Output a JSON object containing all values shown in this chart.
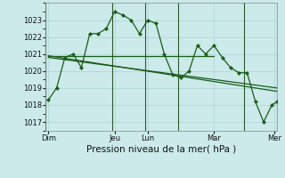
{
  "xlabel": "Pression niveau de la mer( hPa )",
  "bg_color": "#cceaea",
  "grid_color": "#b8d8d8",
  "line_color": "#1a5c1a",
  "vline_color": "#2d5a2d",
  "xlim": [
    0,
    168
  ],
  "ylim": [
    1016.5,
    1024.0
  ],
  "yticks": [
    1017,
    1018,
    1019,
    1020,
    1021,
    1022,
    1023
  ],
  "day_lines_x": [
    0,
    48,
    72,
    96,
    144,
    168
  ],
  "xtick_positions": [
    2,
    50,
    74,
    122,
    166
  ],
  "xtick_labels": [
    "Dim",
    "Jeu",
    "Lun",
    "Mar",
    "Mer"
  ],
  "series_main": {
    "x": [
      2,
      8,
      14,
      20,
      26,
      32,
      38,
      44,
      50,
      56,
      62,
      68,
      74,
      80,
      86,
      92,
      98,
      104,
      110,
      116,
      122,
      128,
      134,
      140,
      146,
      152,
      158,
      164,
      168
    ],
    "y": [
      1018.3,
      1019.0,
      1020.8,
      1021.0,
      1020.2,
      1022.2,
      1022.2,
      1022.5,
      1023.5,
      1023.3,
      1023.0,
      1022.2,
      1023.0,
      1022.8,
      1021.0,
      1019.8,
      1019.6,
      1020.0,
      1021.5,
      1021.0,
      1021.5,
      1020.8,
      1020.2,
      1019.9,
      1019.9,
      1018.2,
      1017.0,
      1018.0,
      1018.2
    ]
  },
  "series_flat": {
    "x": [
      2,
      96,
      122
    ],
    "y": [
      1020.9,
      1020.9,
      1020.9
    ]
  },
  "series_decline1": {
    "x": [
      2,
      168
    ],
    "y": [
      1020.8,
      1019.0
    ]
  },
  "series_decline2": {
    "x": [
      2,
      168
    ],
    "y": [
      1020.9,
      1018.8
    ]
  }
}
